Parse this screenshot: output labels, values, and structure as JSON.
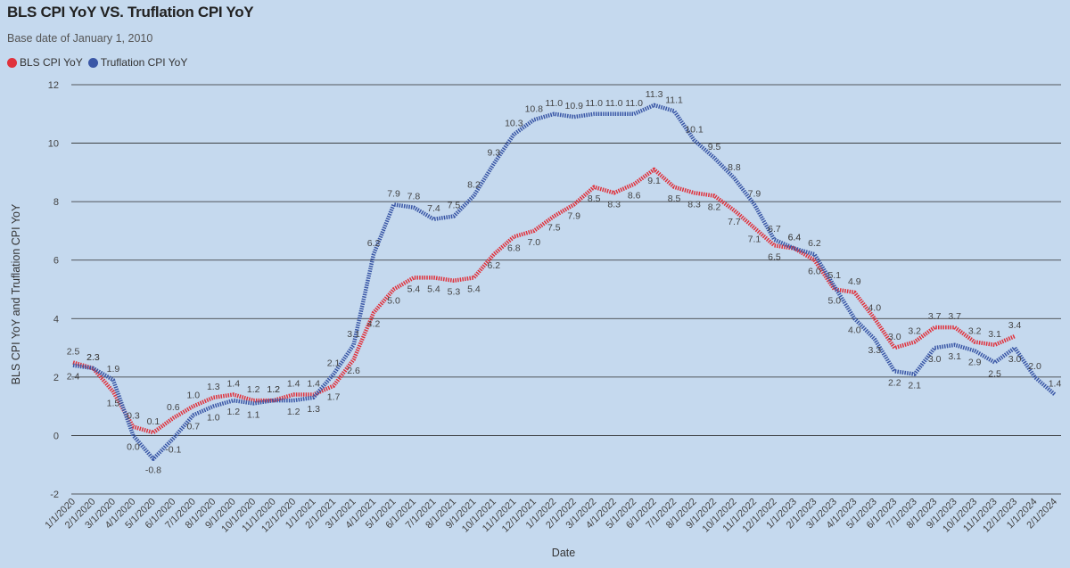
{
  "chart_data": {
    "type": "line",
    "title": "BLS CPI YoY VS. Truflation CPI YoY",
    "subtitle": "Base date of January 1, 2010",
    "xlabel": "Date",
    "ylabel": "BLS CPI YoY and Truflation CPI YoY",
    "ylim": [
      -2,
      12
    ],
    "yticks": [
      -2,
      0,
      2,
      4,
      6,
      8,
      10,
      12
    ],
    "grid": true,
    "legend_position": "top-left",
    "x_tick_labels": [
      "1/1/2020",
      "2/1/2020",
      "3/1/2020",
      "4/1/2020",
      "5/1/2020",
      "6/1/2020",
      "7/1/2020",
      "8/1/2020",
      "9/1/2020",
      "10/1/2020",
      "11/1/2020",
      "12/1/2020",
      "1/1/2021",
      "2/1/2021",
      "3/1/2021",
      "4/1/2021",
      "5/1/2021",
      "6/1/2021",
      "7/1/2021",
      "8/1/2021",
      "9/1/2021",
      "10/1/2021",
      "11/1/2021",
      "12/1/2021",
      "1/1/2022",
      "2/1/2022",
      "3/1/2022",
      "4/1/2022",
      "5/1/2022",
      "6/1/2022",
      "7/1/2022",
      "8/1/2022",
      "9/1/2022",
      "10/1/2022",
      "11/1/2022",
      "12/1/2022",
      "1/1/2023",
      "2/1/2023",
      "3/1/2023",
      "4/1/2023",
      "5/1/2023",
      "6/1/2023",
      "7/1/2023",
      "8/1/2023",
      "9/1/2023",
      "10/1/2023",
      "11/1/2023",
      "12/1/2023",
      "1/1/2024",
      "2/1/2024"
    ],
    "series": [
      {
        "name": "BLS CPI YoY",
        "color": "#e0323c",
        "values": [
          2.5,
          2.3,
          1.5,
          0.3,
          0.1,
          0.6,
          1.0,
          1.3,
          1.4,
          1.2,
          1.2,
          1.4,
          1.4,
          1.7,
          2.6,
          4.2,
          5.0,
          5.4,
          5.4,
          5.3,
          5.4,
          6.2,
          6.8,
          7.0,
          7.5,
          7.9,
          8.5,
          8.3,
          8.6,
          9.1,
          8.5,
          8.3,
          8.2,
          7.7,
          7.1,
          6.5,
          6.4,
          6.0,
          5.0,
          4.9,
          4.0,
          3.0,
          3.2,
          3.7,
          3.7,
          3.2,
          3.1,
          3.4,
          null,
          null
        ]
      },
      {
        "name": "Truflation CPI YoY",
        "color": "#3a57a6",
        "values": [
          2.4,
          2.3,
          1.9,
          0.0,
          -0.8,
          -0.1,
          0.7,
          1.0,
          1.2,
          1.1,
          1.2,
          1.2,
          1.3,
          2.1,
          3.1,
          6.2,
          7.9,
          7.8,
          7.4,
          7.5,
          8.2,
          9.3,
          10.3,
          10.8,
          11.0,
          10.9,
          11.0,
          11.0,
          11.0,
          11.3,
          11.1,
          10.1,
          9.5,
          8.8,
          7.9,
          6.7,
          6.4,
          6.2,
          5.1,
          4.0,
          3.3,
          2.2,
          2.1,
          3.0,
          3.1,
          2.9,
          2.5,
          3.0,
          2.0,
          1.4
        ]
      }
    ]
  }
}
